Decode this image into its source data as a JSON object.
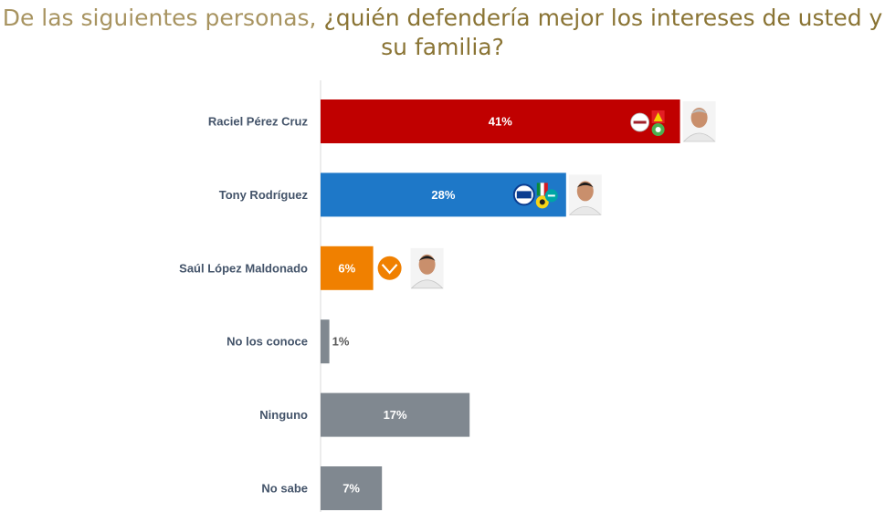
{
  "title": {
    "lead": "De las siguientes personas, ",
    "emphasis": "¿quién defendería mejor los intereses de usted y su familia?"
  },
  "chart_data": {
    "type": "bar",
    "orientation": "horizontal",
    "title": "De las siguientes personas, ¿quién defendería mejor los intereses de usted y su familia?",
    "xlabel": "",
    "ylabel": "",
    "xlim": [
      0,
      50
    ],
    "grid": false,
    "categories": [
      "Raciel Pérez Cruz",
      "Tony Rodríguez",
      "Saúl López Maldonado",
      "No los conoce",
      "Ninguno",
      "No sabe"
    ],
    "values": [
      41,
      28,
      6,
      1,
      17,
      7
    ],
    "value_labels": [
      "41%",
      "28%",
      "6%",
      "1%",
      "17%",
      "7%"
    ],
    "colors": [
      "#c00000",
      "#1e78c8",
      "#f08000",
      "#808890",
      "#808890",
      "#808890"
    ],
    "label_color": "#44546a",
    "party_logos": [
      [
        "morena-logo",
        "pt-logo",
        "pvem-logo"
      ],
      [
        "pan-logo",
        "pri-logo",
        "prd-logo",
        "panal-logo"
      ],
      [
        "movimiento-ciudadano-logo"
      ],
      [],
      [],
      []
    ],
    "candidate_photo": [
      true,
      true,
      true,
      false,
      false,
      false
    ]
  }
}
